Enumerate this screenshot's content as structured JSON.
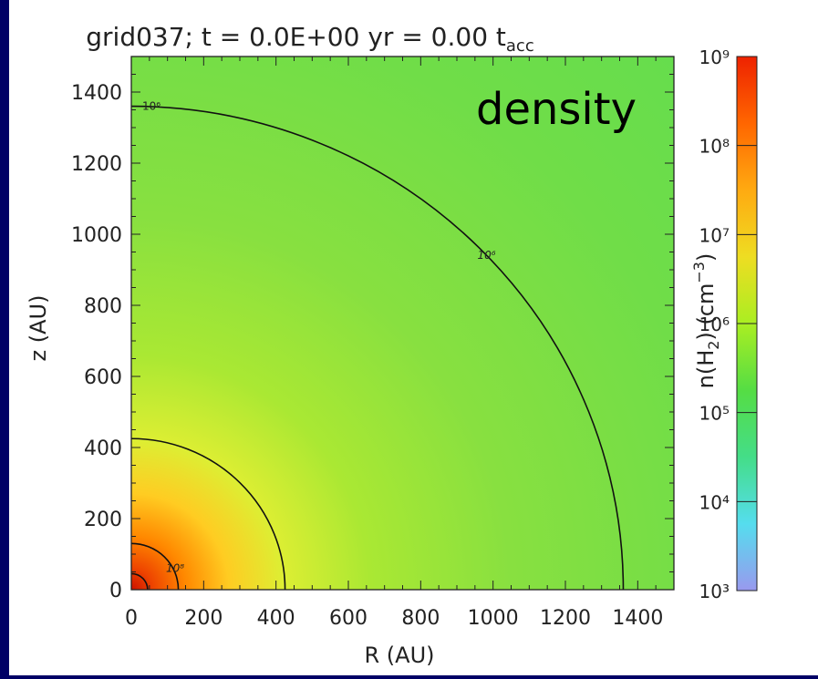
{
  "page": {
    "background": "#000066",
    "panel_background": "#ffffff"
  },
  "chart_data": {
    "type": "heatmap",
    "title": "grid037; t = 0.0E+00 yr = 0.00 t",
    "title_subscript": "acc",
    "panel_label": "density",
    "xlabel": "R (AU)",
    "ylabel": "z (AU)",
    "xlim": [
      0,
      1500
    ],
    "ylim": [
      0,
      1500
    ],
    "xticks": [
      "0",
      "200",
      "400",
      "600",
      "800",
      "1000",
      "1200",
      "1400"
    ],
    "xtick_values": [
      0,
      200,
      400,
      600,
      800,
      1000,
      1200,
      1400
    ],
    "yticks": [
      "0",
      "200",
      "400",
      "600",
      "800",
      "1000",
      "1200",
      "1400"
    ],
    "ytick_values": [
      0,
      200,
      400,
      600,
      800,
      1000,
      1200,
      1400
    ],
    "contours": [
      {
        "radius": 1360,
        "label": "10⁶",
        "level_exp": 6
      },
      {
        "radius": 425,
        "label": "",
        "level_exp": 7
      },
      {
        "radius": 130,
        "label": "10⁸",
        "level_exp": 8
      },
      {
        "radius": 45,
        "label": "",
        "level_exp": 9
      }
    ],
    "colorbar": {
      "label_main": "n(H",
      "label_sub": "2",
      "label_mid": ") (cm",
      "label_sup": "−3",
      "label_end": ")",
      "scale": "log",
      "ticks": [
        "10³",
        "10⁴",
        "10⁵",
        "10⁶",
        "10⁷",
        "10⁸",
        "10⁹"
      ],
      "tick_exponents": [
        3,
        4,
        5,
        6,
        7,
        8,
        9
      ],
      "range_exp": [
        3,
        9
      ],
      "colors": [
        "#9999ee",
        "#55ddee",
        "#44dd88",
        "#55dd44",
        "#aaee22",
        "#eedd22",
        "#ffaa11",
        "#ff6600",
        "#ee2200"
      ]
    },
    "density_model": {
      "base_exp": 6,
      "field_color_outer": "#55e055"
    }
  }
}
